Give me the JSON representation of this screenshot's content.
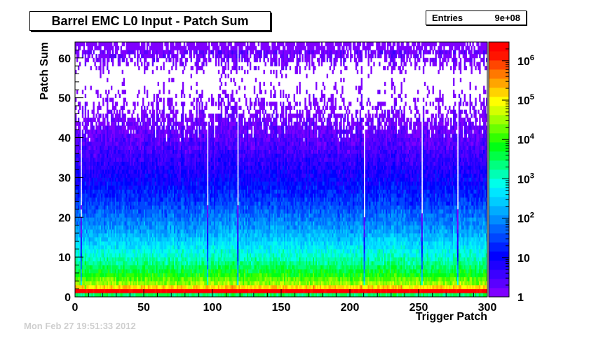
{
  "title": "Barrel EMC L0 Input - Patch Sum",
  "stats": {
    "label": "Entries",
    "value": "9e+08"
  },
  "footer": {
    "date": "Mon Feb 27 19:51:33 2012"
  },
  "palette": [
    "#7f00ff",
    "#5a00ff",
    "#3b00ff",
    "#1e00ff",
    "#0000ff",
    "#0020ff",
    "#0046ff",
    "#0066ff",
    "#008cff",
    "#00acff",
    "#00ccff",
    "#00e6ff",
    "#00ffea",
    "#00ffb4",
    "#00ff7f",
    "#00ff46",
    "#00ff14",
    "#32ff00",
    "#6aff00",
    "#a0ff00",
    "#d4ff00",
    "#ffff00",
    "#ffd200",
    "#ffa500",
    "#ff7800",
    "#ff4600",
    "#ff1400",
    "#ff0000"
  ],
  "chart_data": {
    "type": "heatmap",
    "title": "Barrel EMC L0 Input - Patch Sum",
    "xlabel": "Trigger Patch",
    "ylabel": "Patch Sum",
    "xlim": [
      0,
      300
    ],
    "ylim": [
      0,
      64
    ],
    "x_ticks": [
      0,
      50,
      100,
      150,
      200,
      250,
      300
    ],
    "y_ticks": [
      0,
      10,
      20,
      30,
      40,
      50,
      60
    ],
    "z_scale": "log",
    "z_range": [
      1,
      3000000
    ],
    "colorbar_ticks": [
      {
        "value": 1,
        "label": "1"
      },
      {
        "value": 10,
        "label": "10"
      },
      {
        "value": 100,
        "label": "10^2"
      },
      {
        "value": 1000,
        "label": "10^3"
      },
      {
        "value": 10000,
        "label": "10^4"
      },
      {
        "value": 100000,
        "label": "10^5"
      },
      {
        "value": 1000000,
        "label": "10^6"
      }
    ],
    "row_profile": [
      {
        "y": 0,
        "counts": 3000
      },
      {
        "y": 1,
        "counts": 3000000
      },
      {
        "y": 2,
        "counts": 150000
      },
      {
        "y": 3,
        "counts": 30000
      },
      {
        "y": 5,
        "counts": 8000
      },
      {
        "y": 8,
        "counts": 2000
      },
      {
        "y": 12,
        "counts": 500
      },
      {
        "y": 16,
        "counts": 150
      },
      {
        "y": 20,
        "counts": 60
      },
      {
        "y": 25,
        "counts": 20
      },
      {
        "y": 30,
        "counts": 8
      },
      {
        "y": 35,
        "counts": 4
      },
      {
        "y": 40,
        "counts": 2
      },
      {
        "y": 46,
        "counts": 1
      },
      {
        "y": 55,
        "counts": 0.5
      },
      {
        "y": 62,
        "counts": 2
      }
    ],
    "low_columns_x": [
      4,
      96,
      118,
      210,
      252,
      278
    ],
    "hot_spots": [
      {
        "x": 7,
        "y": 2,
        "counts": 20000
      },
      {
        "x": 84,
        "y": 2,
        "counts": 60000
      },
      {
        "x": 277,
        "y": 2,
        "counts": 150000
      }
    ],
    "grid": false
  }
}
